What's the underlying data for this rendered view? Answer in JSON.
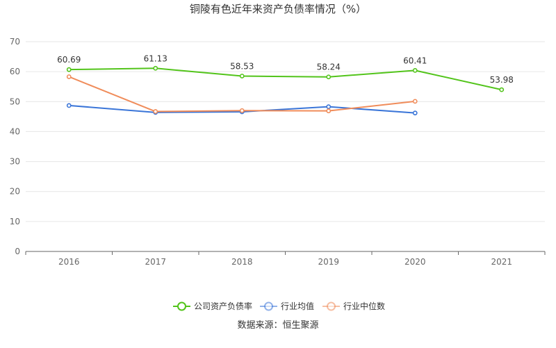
{
  "chart_data": {
    "type": "line",
    "title": "铜陵有色近年来资产负债率情况（%）",
    "categories": [
      "2016",
      "2017",
      "2018",
      "2019",
      "2020",
      "2021"
    ],
    "ylim": [
      0,
      70
    ],
    "yticks": [
      0,
      10,
      20,
      30,
      40,
      50,
      60,
      70
    ],
    "grid": true,
    "legend_position": "bottom",
    "series": [
      {
        "name": "公司资产负债率",
        "color": "#52c41a",
        "values": [
          60.69,
          61.13,
          58.53,
          58.24,
          60.41,
          53.98
        ],
        "labels": [
          "60.69",
          "61.13",
          "58.53",
          "58.24",
          "60.41",
          "53.98"
        ]
      },
      {
        "name": "行业均值",
        "color": "#3a75d8",
        "values": [
          48.7,
          46.4,
          46.6,
          48.3,
          46.2,
          null
        ]
      },
      {
        "name": "行业中位数",
        "color": "#f08c5a",
        "values": [
          58.3,
          46.7,
          47.0,
          46.9,
          50.1,
          null
        ]
      }
    ],
    "source": "数据来源：恒生聚源"
  }
}
